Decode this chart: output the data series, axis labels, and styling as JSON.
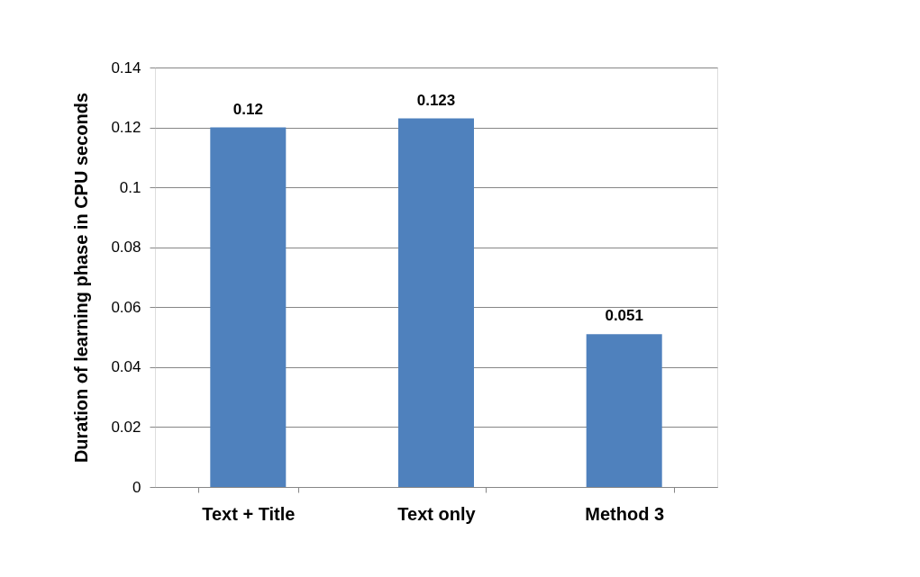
{
  "chart_data": {
    "type": "bar",
    "ylabel": "Duration of learning phase in CPU seconds",
    "categories": [
      "Text + Title",
      "Text only",
      "Method 3"
    ],
    "values": [
      0.12,
      0.123,
      0.051
    ],
    "color": "#4f81bd",
    "ylim": [
      0,
      0.14
    ],
    "yticks": [
      0,
      0.02,
      0.04,
      0.06,
      0.08,
      0.1,
      0.12,
      0.14
    ],
    "grid": "y",
    "data_labels": true
  }
}
